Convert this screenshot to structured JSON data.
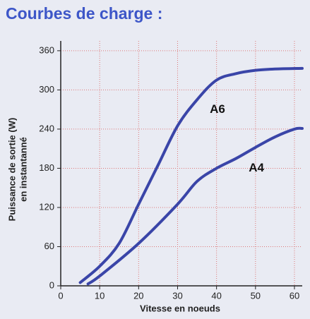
{
  "chart_data": {
    "type": "line",
    "title": "Courbes de charge :",
    "xlabel": "Vitesse en noeuds",
    "ylabel": [
      "Puissance de sortie (W)",
      "en instantanné"
    ],
    "xlim": [
      0,
      62
    ],
    "xticks": [
      0,
      10,
      20,
      30,
      40,
      50,
      60
    ],
    "ylim": [
      0,
      375
    ],
    "yticks": [
      0,
      60,
      120,
      180,
      240,
      300,
      360
    ],
    "grid": true,
    "series": [
      {
        "name": "A6",
        "color": "#3a45a8",
        "x": [
          5,
          10,
          15,
          20,
          25,
          30,
          35,
          40,
          45,
          50,
          55,
          62
        ],
        "values": [
          5,
          30,
          65,
          125,
          185,
          245,
          285,
          315,
          325,
          330,
          332,
          333
        ]
      },
      {
        "name": "A4",
        "color": "#3a45a8",
        "x": [
          7,
          10,
          20,
          30,
          35,
          40,
          45,
          50,
          55,
          60,
          62
        ],
        "values": [
          3,
          15,
          65,
          125,
          160,
          180,
          195,
          212,
          228,
          240,
          241
        ]
      }
    ]
  }
}
